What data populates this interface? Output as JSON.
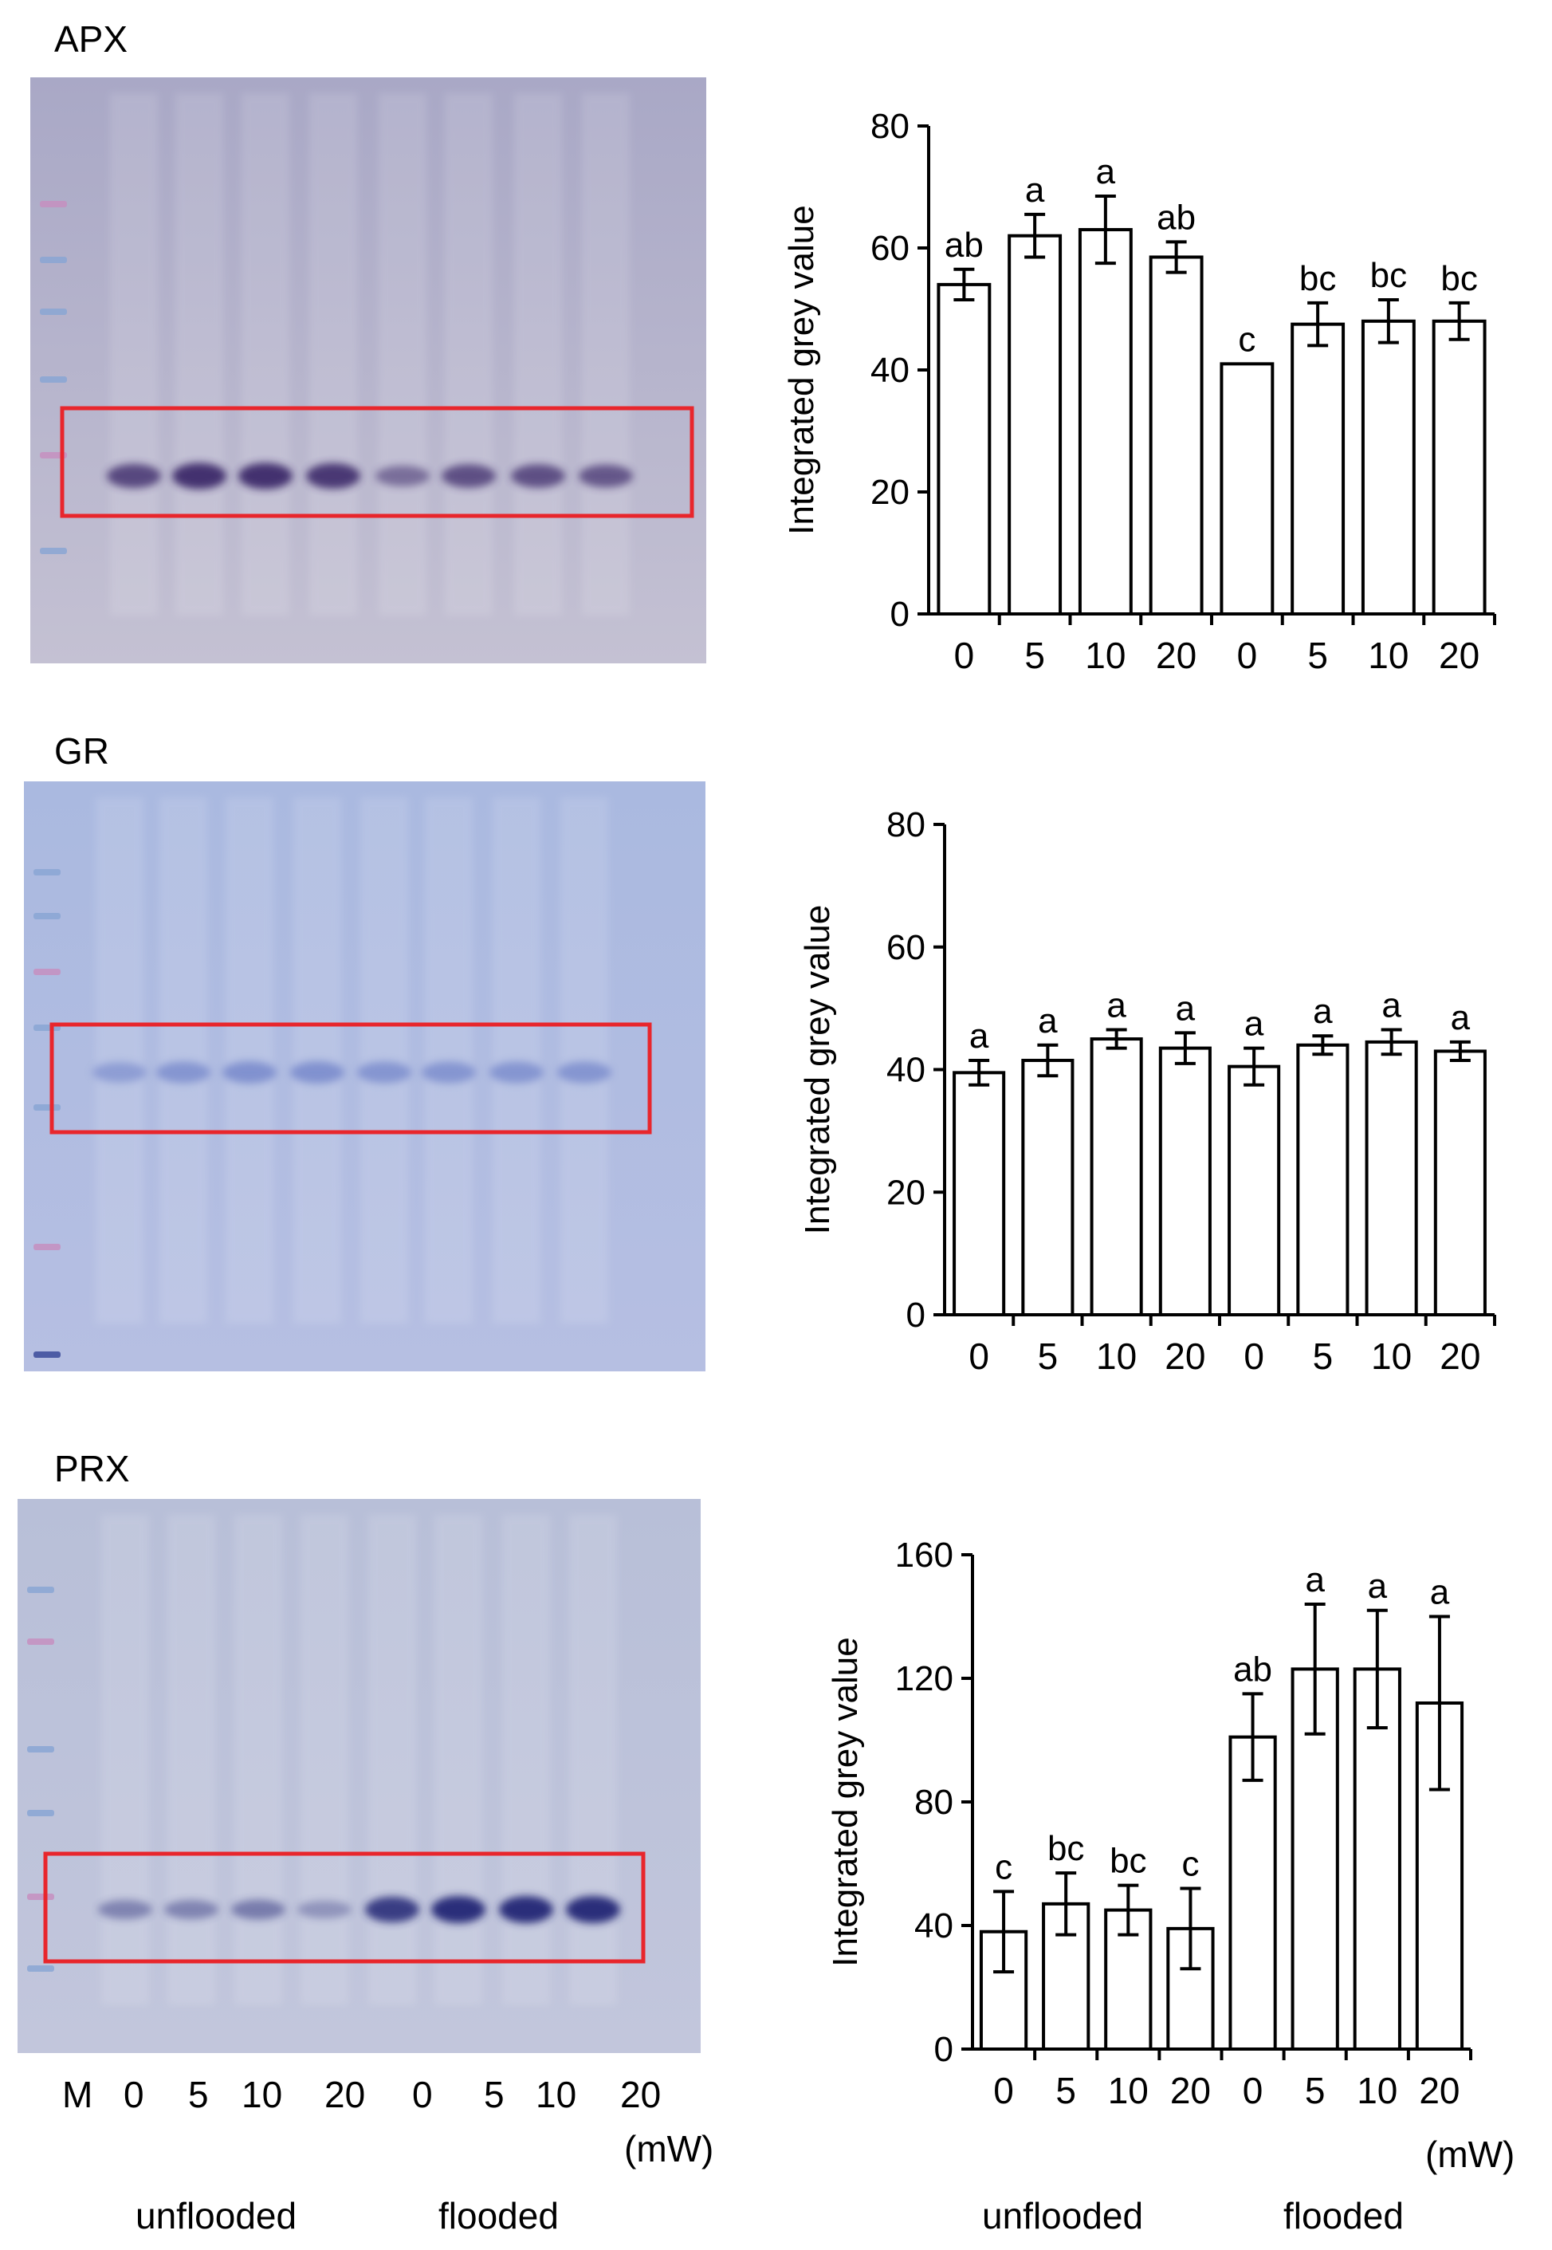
{
  "panels": [
    {
      "id": "apx",
      "label": "APX",
      "gel": {
        "bg_top": "#a9a8c6",
        "bg_bottom": "#c4c1d3",
        "band_color": "#3d2a6b",
        "band_intensity": [
          0.8,
          0.95,
          0.95,
          0.9,
          0.55,
          0.75,
          0.75,
          0.7
        ],
        "ladder_colors": [
          "#c58fbf",
          "#8aa6d4",
          "#8aa6d4",
          "#8aa6d4",
          "#c58fbf",
          "#8aa6d4"
        ]
      },
      "chart": {
        "ylabel": "Integrated grey value"
      }
    },
    {
      "id": "gr",
      "label": "GR",
      "gel": {
        "bg_top": "#aab9e0",
        "bg_bottom": "#b6bfe2",
        "band_color": "#6477c4",
        "band_intensity": [
          0.5,
          0.6,
          0.65,
          0.65,
          0.6,
          0.6,
          0.6,
          0.6
        ],
        "ladder_colors": [
          "#8aa6d4",
          "#8aa6d4",
          "#c58fbf",
          "#8aa6d4",
          "#8aa6d4",
          "#c58fbf",
          "#3b4a9a"
        ]
      },
      "chart": {
        "ylabel": "Integrated grey value"
      }
    },
    {
      "id": "prx",
      "label": "PRX",
      "gel": {
        "bg_top": "#b8bfd8",
        "bg_bottom": "#c2c6dc",
        "band_color": "#2a2d7a",
        "band_intensity": [
          0.45,
          0.45,
          0.5,
          0.35,
          0.9,
          1.0,
          1.0,
          1.0
        ],
        "ladder_colors": [
          "#8aa6d4",
          "#c58fbf",
          "#8aa6d4",
          "#8aa6d4",
          "#c58fbf",
          "#8aa6d4"
        ]
      },
      "chart": {
        "ylabel": "Integrated grey value"
      }
    }
  ],
  "gel_axis": {
    "marker": "M",
    "lanes": [
      "0",
      "5",
      "10",
      "20",
      "0",
      "5",
      "10",
      "20"
    ],
    "unit": "(mW)",
    "groups": [
      "unflooded",
      "flooded"
    ]
  },
  "chart_axis": {
    "unit": "(mW)",
    "groups": [
      "unflooded",
      "flooded"
    ]
  },
  "chart_data": [
    {
      "type": "bar",
      "panel": "APX",
      "categories": [
        "0",
        "5",
        "10",
        "20",
        "0",
        "5",
        "10",
        "20"
      ],
      "values": [
        54,
        62,
        63,
        58.5,
        41,
        47.5,
        48,
        48
      ],
      "errors": [
        2.5,
        3.5,
        5.5,
        2.5,
        0,
        3.5,
        3.5,
        3
      ],
      "letters": [
        "ab",
        "a",
        "a",
        "ab",
        "c",
        "bc",
        "bc",
        "bc"
      ],
      "ylabel": "Integrated grey value",
      "ylim": [
        0,
        80
      ],
      "yticks": [
        0,
        20,
        40,
        60,
        80
      ],
      "bar_fill": "#ffffff",
      "bar_edge": "#000000"
    },
    {
      "type": "bar",
      "panel": "GR",
      "categories": [
        "0",
        "5",
        "10",
        "20",
        "0",
        "5",
        "10",
        "20"
      ],
      "values": [
        39.5,
        41.5,
        45,
        43.5,
        40.5,
        44,
        44.5,
        43
      ],
      "errors": [
        2,
        2.5,
        1.5,
        2.5,
        3,
        1.5,
        2,
        1.5
      ],
      "letters": [
        "a",
        "a",
        "a",
        "a",
        "a",
        "a",
        "a",
        "a"
      ],
      "ylabel": "Integrated grey value",
      "ylim": [
        0,
        80
      ],
      "yticks": [
        0,
        20,
        40,
        60,
        80
      ],
      "bar_fill": "#ffffff",
      "bar_edge": "#000000"
    },
    {
      "type": "bar",
      "panel": "PRX",
      "categories": [
        "0",
        "5",
        "10",
        "20",
        "0",
        "5",
        "10",
        "20"
      ],
      "values": [
        38,
        47,
        45,
        39,
        101,
        123,
        123,
        112
      ],
      "errors": [
        13,
        10,
        8,
        13,
        14,
        21,
        19,
        28
      ],
      "letters": [
        "c",
        "bc",
        "bc",
        "c",
        "ab",
        "a",
        "a",
        "a"
      ],
      "ylabel": "Integrated grey value",
      "ylim": [
        0,
        160
      ],
      "yticks": [
        0,
        40,
        80,
        120,
        160
      ],
      "bar_fill": "#ffffff",
      "bar_edge": "#000000"
    }
  ]
}
